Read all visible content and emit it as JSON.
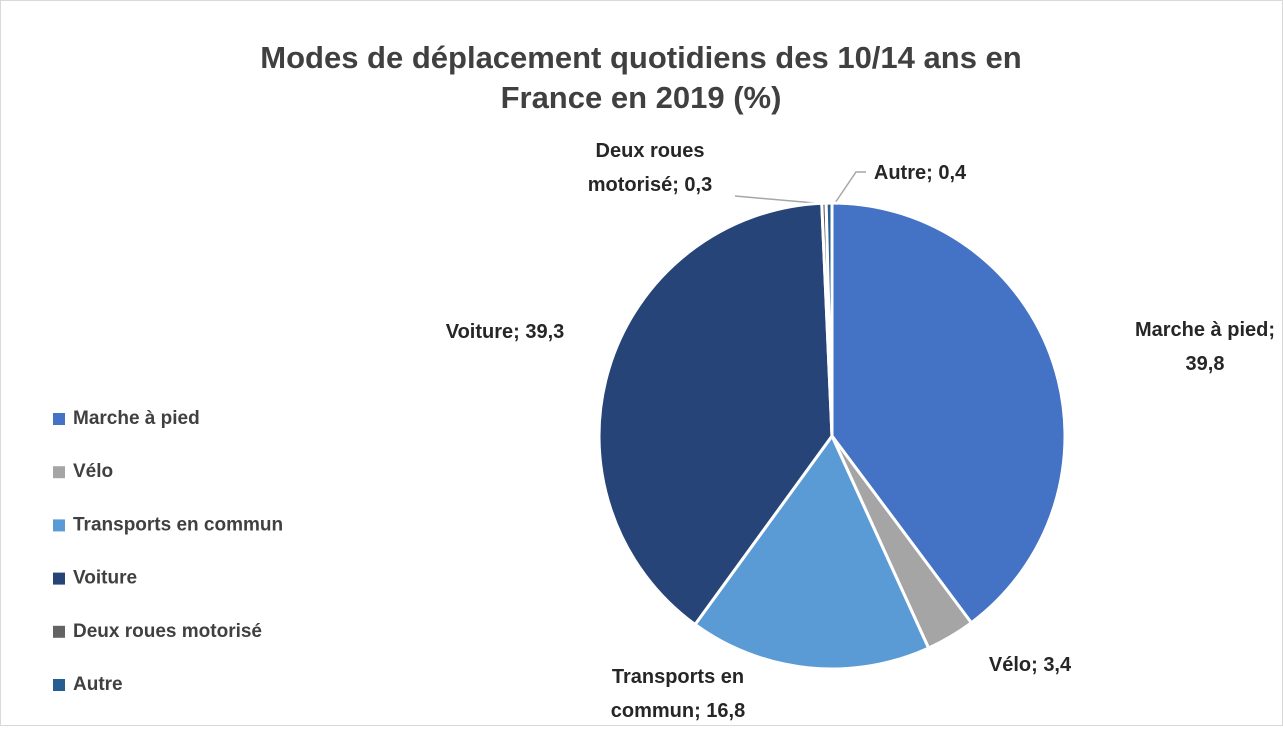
{
  "chart_data": {
    "type": "pie",
    "title": "Modes de déplacement quotidiens des 10/14 ans en France en 2019 (%)",
    "categories": [
      "Marche à pied",
      "Vélo",
      "Transports en commun",
      "Voiture",
      "Deux roues motorisé",
      "Autre"
    ],
    "values": [
      39.8,
      3.4,
      16.8,
      39.3,
      0.3,
      0.4
    ],
    "value_labels": [
      "Marche à pied; 39,8",
      "Vélo; 3,4",
      "Transports en commun; 16,8",
      "Voiture; 39,3",
      "Deux roues motorisé; 0,3",
      "Autre; 0,4"
    ],
    "colors": [
      "#4472c4",
      "#a5a5a5",
      "#5b9bd5",
      "#264478",
      "#636363",
      "#255e91"
    ],
    "legend": "left"
  }
}
